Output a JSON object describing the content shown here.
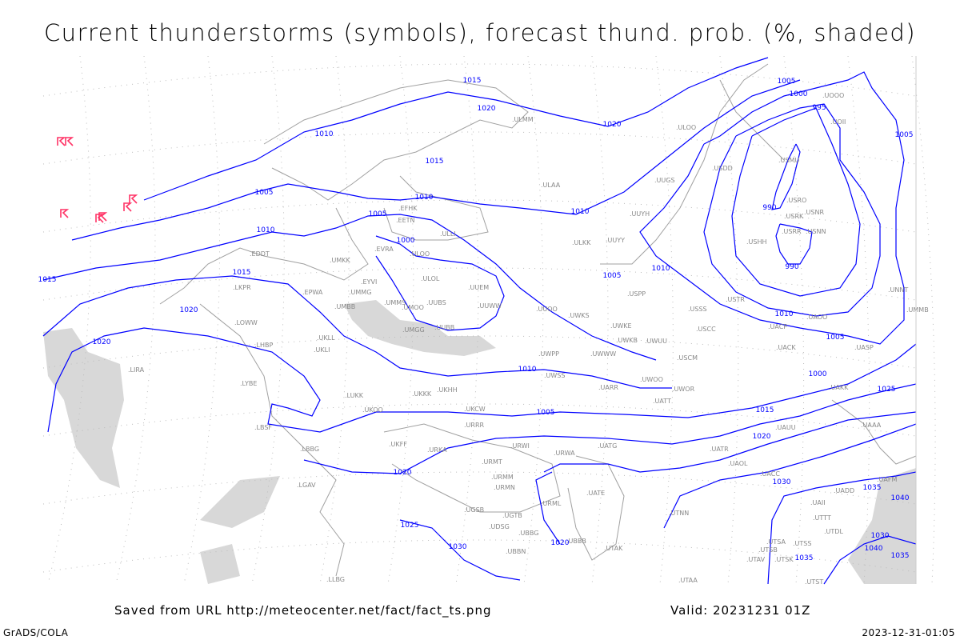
{
  "title": "Current thunderstorms (symbols), forecast thund. prob. (%, shaded)",
  "footer": {
    "source": "Saved from URL http://meteocenter.net/fact/fact_ts.png",
    "valid": "Valid: 20231231 01Z",
    "software": "GrADS/COLA",
    "timestamp": "2023-12-31-01:05"
  },
  "colors": {
    "isobars": "#0000ff",
    "coastlines": "#a0a0a0",
    "stations": "#888888",
    "thunderstorm_symbols": "#ff3366",
    "probability_shading": "#d8d8d8"
  },
  "isobar_labels": [
    "1015",
    "1020",
    "1020",
    "1005",
    "1000",
    "995",
    "990",
    "990",
    "1005",
    "1010",
    "1005",
    "1015",
    "1010",
    "1010",
    "1005",
    "1000",
    "1010",
    "1015",
    "1020",
    "1020",
    "1005",
    "1010",
    "1010",
    "1005",
    "1000",
    "1005",
    "1010",
    "1015",
    "1020",
    "1025",
    "1030",
    "1035",
    "1040",
    "1030",
    "1040",
    "1035",
    "1035",
    "1025",
    "1030",
    "1020",
    "1020",
    "1015"
  ],
  "stations": [
    "ULMM",
    "ULOO",
    "USDD",
    "UUYH",
    "ULAA",
    "ULKK",
    "UUYY",
    "UUGS",
    "EFHK",
    "EETN",
    "ULLI",
    "EVRA",
    "ULOO",
    "ULOL",
    "UUEM",
    "UUWW",
    "UMMS",
    "UMOO",
    "UUBS",
    "UMGG",
    "UUBB",
    "UUOO",
    "UWKS",
    "UWKE",
    "UWKB",
    "UWUU",
    "UWWW",
    "UWPP",
    "USSS",
    "USCC",
    "USCM",
    "UATT",
    "UWOR",
    "UWOO",
    "UARR",
    "UWSS",
    "USTR",
    "UACP",
    "UACK",
    "UAOO",
    "UASP",
    "UAKK",
    "UAAA",
    "UAUU",
    "UATR",
    "UAOL",
    "UACC",
    "UAFM",
    "UADD",
    "UAII",
    "UTTT",
    "UTDL",
    "UTSA",
    "UTSS",
    "UTSB",
    "UTAV",
    "UTSK",
    "UTST",
    "UTAA",
    "UTNN",
    "UATE",
    "UATG",
    "UKFF",
    "UKOO",
    "UKKK",
    "UKHH",
    "EDDT",
    "EPWA",
    "LKPR",
    "LOWW",
    "LHBP",
    "UKLL",
    "UKLI",
    "UMMG",
    "EYVI",
    "UMBB",
    "UMKK",
    "LIRA",
    "LYBE",
    "LBSF",
    "LUKK",
    "LBBG",
    "LGAV",
    "URKA",
    "URRR",
    "URWI",
    "URWA",
    "URMT",
    "URMM",
    "URMN",
    "UGSB",
    "UGTB",
    "UDSG",
    "UBBB",
    "UBBG",
    "UBBN",
    "UTAK",
    "URML",
    "LLBG",
    "USMU",
    "USRO",
    "USRK",
    "USNR",
    "USRR",
    "USNN",
    "USHH",
    "UOOO",
    "UOII",
    "UNNT",
    "UMMB",
    "USPP",
    "UKCW"
  ],
  "thunderstorm_symbol_count": 7
}
